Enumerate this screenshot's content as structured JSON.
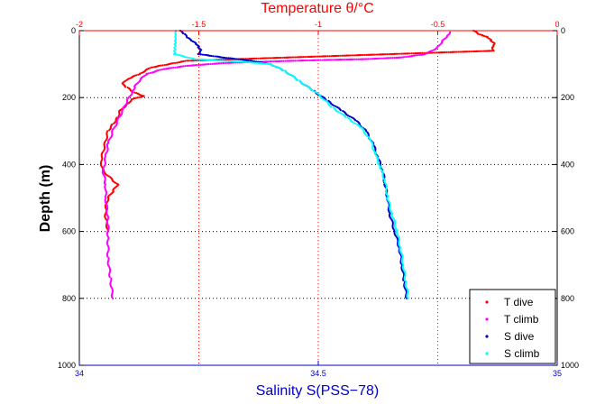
{
  "chart_data": {
    "type": "scatter",
    "top_axis": {
      "label": "Temperature θ/°C",
      "range": [
        -2,
        0
      ],
      "ticks": [
        "-2",
        "-1.5",
        "-1",
        "-0.5",
        "0"
      ],
      "color": "#ff0000"
    },
    "bottom_axis": {
      "label": "Salinity S(PSS−78)",
      "range": [
        34,
        35
      ],
      "ticks": [
        "34",
        "34.5",
        "35"
      ],
      "color": "#0000cc"
    },
    "y_axis": {
      "label": "Depth (m)",
      "range": [
        0,
        1000
      ],
      "inverted": true,
      "ticks": [
        "0",
        "200",
        "400",
        "600",
        "800",
        "1000"
      ],
      "right_ticks": true
    },
    "grid": true,
    "legend_position": "bottom-right",
    "series": [
      {
        "name": "T dive",
        "axis": "temperature",
        "color": "#ff0000",
        "points": [
          [
            -0.35,
            0
          ],
          [
            -0.33,
            10
          ],
          [
            -0.31,
            15
          ],
          [
            -0.29,
            20
          ],
          [
            -0.275,
            30
          ],
          [
            -0.26,
            40
          ],
          [
            -0.27,
            50
          ],
          [
            -0.265,
            60
          ],
          [
            -1.55,
            90
          ],
          [
            -1.7,
            110
          ],
          [
            -1.75,
            130
          ],
          [
            -1.8,
            145
          ],
          [
            -1.82,
            160
          ],
          [
            -1.8,
            170
          ],
          [
            -1.77,
            185
          ],
          [
            -1.73,
            195
          ],
          [
            -1.78,
            205
          ],
          [
            -1.8,
            220
          ],
          [
            -1.83,
            240
          ],
          [
            -1.84,
            260
          ],
          [
            -1.86,
            280
          ],
          [
            -1.88,
            300
          ],
          [
            -1.89,
            330
          ],
          [
            -1.9,
            360
          ],
          [
            -1.91,
            390
          ],
          [
            -1.9,
            420
          ],
          [
            -1.87,
            440
          ],
          [
            -1.84,
            460
          ],
          [
            -1.86,
            480
          ],
          [
            -1.88,
            500
          ],
          [
            -1.89,
            530
          ],
          [
            -1.89,
            560
          ],
          [
            -1.88,
            600
          ]
        ]
      },
      {
        "name": "T climb",
        "axis": "temperature",
        "color": "#ff00ff",
        "points": [
          [
            -0.45,
            5
          ],
          [
            -0.46,
            15
          ],
          [
            -0.48,
            30
          ],
          [
            -0.5,
            50
          ],
          [
            -0.55,
            70
          ],
          [
            -0.65,
            80
          ],
          [
            -0.8,
            85
          ],
          [
            -1.0,
            88
          ],
          [
            -1.2,
            92
          ],
          [
            -1.4,
            97
          ],
          [
            -1.55,
            105
          ],
          [
            -1.65,
            115
          ],
          [
            -1.72,
            130
          ],
          [
            -1.75,
            150
          ],
          [
            -1.77,
            170
          ],
          [
            -1.78,
            185
          ],
          [
            -1.8,
            210
          ],
          [
            -1.82,
            240
          ],
          [
            -1.84,
            270
          ],
          [
            -1.86,
            300
          ],
          [
            -1.88,
            340
          ],
          [
            -1.89,
            380
          ],
          [
            -1.9,
            420
          ],
          [
            -1.89,
            460
          ],
          [
            -1.89,
            500
          ],
          [
            -1.88,
            560
          ],
          [
            -1.88,
            620
          ],
          [
            -1.88,
            680
          ],
          [
            -1.87,
            740
          ],
          [
            -1.86,
            800
          ]
        ]
      },
      {
        "name": "S dive",
        "axis": "salinity",
        "color": "#0000cc",
        "points": [
          [
            34.21,
            0
          ],
          [
            34.22,
            10
          ],
          [
            34.225,
            20
          ],
          [
            34.235,
            30
          ],
          [
            34.245,
            40
          ],
          [
            34.25,
            50
          ],
          [
            34.255,
            60
          ],
          [
            34.25,
            70
          ],
          [
            34.3,
            80
          ],
          [
            34.36,
            90
          ],
          [
            34.4,
            100
          ],
          [
            34.43,
            120
          ],
          [
            34.46,
            150
          ],
          [
            34.49,
            180
          ],
          [
            34.52,
            210
          ],
          [
            34.55,
            240
          ],
          [
            34.58,
            270
          ],
          [
            34.6,
            300
          ],
          [
            34.615,
            340
          ],
          [
            34.625,
            380
          ],
          [
            34.635,
            420
          ],
          [
            34.64,
            460
          ],
          [
            34.645,
            500
          ],
          [
            34.65,
            550
          ],
          [
            34.66,
            600
          ],
          [
            34.67,
            650
          ],
          [
            34.675,
            700
          ],
          [
            34.68,
            750
          ],
          [
            34.685,
            800
          ]
        ]
      },
      {
        "name": "S climb",
        "axis": "salinity",
        "color": "#00ffff",
        "points": [
          [
            34.2,
            0
          ],
          [
            34.2,
            10
          ],
          [
            34.2,
            20
          ],
          [
            34.2,
            30
          ],
          [
            34.2,
            40
          ],
          [
            34.2,
            50
          ],
          [
            34.2,
            60
          ],
          [
            34.2,
            70
          ],
          [
            34.24,
            85
          ],
          [
            34.3,
            90
          ],
          [
            34.36,
            95
          ],
          [
            34.4,
            100
          ],
          [
            34.43,
            120
          ],
          [
            34.46,
            150
          ],
          [
            34.5,
            190
          ],
          [
            34.53,
            230
          ],
          [
            34.56,
            260
          ],
          [
            34.59,
            290
          ],
          [
            34.61,
            330
          ],
          [
            34.62,
            370
          ],
          [
            34.63,
            410
          ],
          [
            34.64,
            450
          ],
          [
            34.645,
            500
          ],
          [
            34.655,
            550
          ],
          [
            34.665,
            600
          ],
          [
            34.672,
            650
          ],
          [
            34.678,
            700
          ],
          [
            34.683,
            750
          ],
          [
            34.688,
            800
          ]
        ]
      }
    ]
  }
}
